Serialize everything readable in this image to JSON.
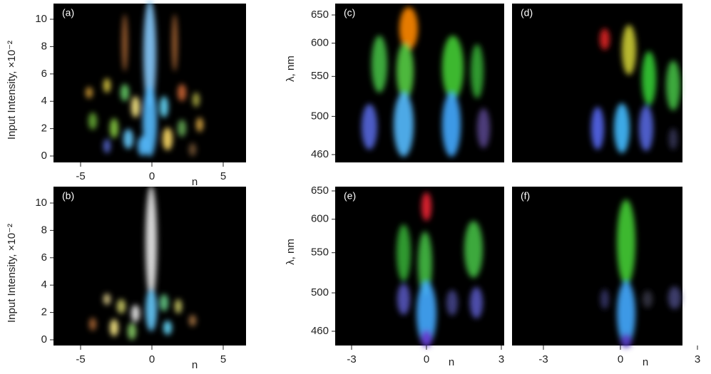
{
  "panels": [
    {
      "label": "(a)",
      "y_axis_label": "Input Intensity, ×10⁻²",
      "y_ticks": [
        0,
        2,
        4,
        6,
        8,
        10
      ],
      "x_ticks": [
        -5,
        0,
        5
      ],
      "x_axis_label": "n"
    },
    {
      "label": "(b)",
      "y_axis_label": "Input Intensity, ×10⁻²",
      "y_ticks": [
        0,
        2,
        4,
        6,
        8,
        10
      ],
      "x_ticks": [
        -5,
        0,
        5
      ],
      "x_axis_label": "n"
    },
    {
      "label": "(c)",
      "y_axis_label": "λ, nm",
      "y_ticks": [
        650,
        600,
        550,
        500,
        460
      ]
    },
    {
      "label": "(d)"
    },
    {
      "label": "(e)",
      "y_axis_label": "λ, nm",
      "y_ticks": [
        650,
        600,
        550,
        500,
        460
      ],
      "x_ticks": [
        -3,
        0,
        3
      ],
      "x_axis_label": "n"
    },
    {
      "label": "(f)",
      "x_ticks": [
        -3,
        0,
        3
      ],
      "x_axis_label": "n"
    }
  ]
}
